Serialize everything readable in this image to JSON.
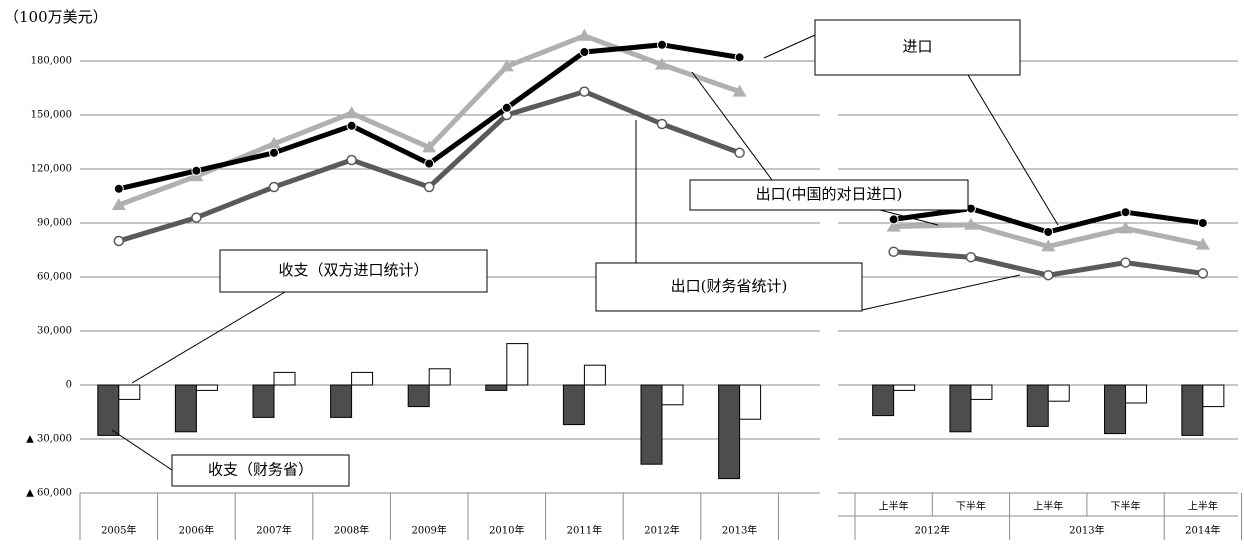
{
  "chart_data": [
    {
      "type": "line",
      "y_label": "（100万美元）",
      "categories": [
        "2005年",
        "2006年",
        "2007年",
        "2008年",
        "2009年",
        "2010年",
        "2011年",
        "2012年",
        "2013年"
      ],
      "ylim": [
        -60000,
        200000
      ],
      "yticks": [
        {
          "value": -60000,
          "label": "▲ 60,000"
        },
        {
          "value": -30000,
          "label": "▲ 30,000"
        },
        0,
        {
          "value": 30000,
          "label": "30,000"
        },
        {
          "value": 60000,
          "label": "60,000"
        },
        {
          "value": 90000,
          "label": "90,000"
        },
        {
          "value": 120000,
          "label": "120,000"
        },
        {
          "value": 150000,
          "label": "150,000"
        },
        {
          "value": 180000,
          "label": "180,000"
        }
      ],
      "grid": true,
      "series": [
        {
          "name": "收支（财务省）",
          "type": "bar",
          "color": "#4d4d4d",
          "values": [
            -28000,
            -26000,
            -18000,
            -18000,
            -12000,
            -3000,
            -22000,
            -44000,
            -52000
          ]
        },
        {
          "name": "收支（双方进口统计）",
          "type": "bar",
          "color": "#ffffff",
          "values": [
            -8000,
            -3000,
            7000,
            7000,
            9000,
            23000,
            11000,
            -11000,
            -19000
          ]
        },
        {
          "name": "出口(财务省统计)",
          "type": "line",
          "marker": "open-circle",
          "color": "#5a5a5a",
          "values": [
            80000,
            93000,
            110000,
            125000,
            110000,
            150000,
            163000,
            145000,
            129000
          ]
        },
        {
          "name": "出口(中国的对日进口)",
          "type": "line",
          "marker": "triangle",
          "color": "#b0b0b0",
          "values": [
            100000,
            116000,
            134000,
            151000,
            132000,
            177000,
            194000,
            178000,
            163000
          ]
        },
        {
          "name": "进口",
          "type": "line",
          "marker": "dot",
          "color": "#000000",
          "values": [
            109000,
            119000,
            129000,
            144000,
            123000,
            154000,
            185000,
            189000,
            182000
          ]
        }
      ]
    },
    {
      "type": "line",
      "categories": [
        "上半年",
        "下半年",
        "上半年",
        "下半年",
        "上半年"
      ],
      "groups": [
        "2012年",
        "2012年",
        "2013年",
        "2013年",
        "2014年"
      ],
      "ylim": [
        -60000,
        200000
      ],
      "yticks": [
        -60000,
        -30000,
        0,
        30000,
        60000,
        90000,
        120000,
        150000,
        180000
      ],
      "grid": true,
      "series": [
        {
          "type": "bar",
          "color": "#4d4d4d",
          "values": [
            -17000,
            -26000,
            -23000,
            -27000,
            -28000
          ]
        },
        {
          "type": "bar",
          "color": "#ffffff",
          "values": [
            -3000,
            -8000,
            -9000,
            -10000,
            -12000
          ]
        },
        {
          "type": "line",
          "marker": "open-circle",
          "color": "#5a5a5a",
          "values": [
            74000,
            71000,
            61000,
            68000,
            62000
          ]
        },
        {
          "type": "line",
          "marker": "triangle",
          "color": "#b0b0b0",
          "values": [
            88000,
            89000,
            77000,
            87000,
            78000
          ]
        },
        {
          "type": "line",
          "marker": "dot",
          "color": "#000000",
          "values": [
            92000,
            98000,
            85000,
            96000,
            90000
          ]
        }
      ]
    }
  ]
}
